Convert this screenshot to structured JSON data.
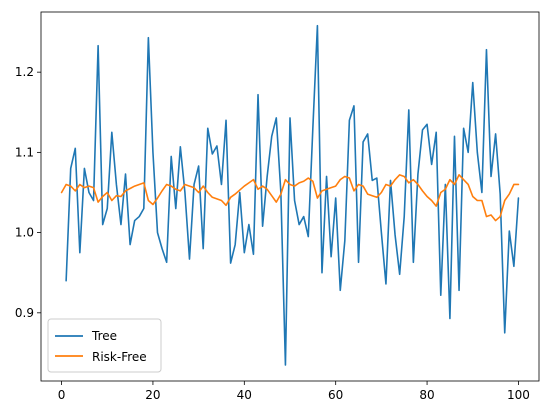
{
  "chart_data": {
    "type": "line",
    "title": "",
    "xlabel": "",
    "ylabel": "",
    "xlim": [
      -4.5,
      104.5
    ],
    "ylim": [
      0.815,
      1.275
    ],
    "x_ticks": [
      0,
      20,
      40,
      60,
      80,
      100
    ],
    "y_ticks": [
      0.9,
      1.0,
      1.1,
      1.2
    ],
    "x_tick_labels": [
      "0",
      "20",
      "40",
      "60",
      "80",
      "100"
    ],
    "y_tick_labels": [
      "0.9",
      "1.0",
      "1.1",
      "1.2"
    ],
    "grid": false,
    "legend_position": "lower-left",
    "series": [
      {
        "name": "Tree",
        "color": "#1f77b4",
        "x_start": 1,
        "values": [
          0.94,
          1.08,
          1.105,
          0.975,
          1.08,
          1.05,
          1.04,
          1.233,
          1.01,
          1.03,
          1.125,
          1.06,
          1.01,
          1.073,
          0.985,
          1.015,
          1.02,
          1.03,
          1.243,
          1.1,
          1.0,
          0.98,
          0.963,
          1.095,
          1.03,
          1.107,
          1.05,
          0.967,
          1.06,
          1.083,
          0.98,
          1.13,
          1.098,
          1.108,
          1.06,
          1.14,
          0.962,
          0.985,
          1.05,
          0.975,
          1.01,
          0.973,
          1.172,
          1.008,
          1.07,
          1.12,
          1.143,
          1.05,
          0.835,
          1.143,
          1.04,
          1.01,
          1.02,
          0.995,
          1.13,
          1.258,
          0.95,
          1.07,
          0.97,
          1.043,
          0.928,
          0.99,
          1.14,
          1.158,
          0.963,
          1.113,
          1.123,
          1.065,
          1.068,
          1.0,
          0.936,
          1.065,
          0.997,
          0.948,
          1.02,
          1.153,
          0.963,
          1.073,
          1.128,
          1.135,
          1.085,
          1.125,
          0.922,
          1.06,
          0.893,
          1.12,
          0.928,
          1.13,
          1.1,
          1.187,
          1.1,
          1.05,
          1.228,
          1.07,
          1.123,
          1.048,
          0.875,
          1.002,
          0.958,
          1.043
        ]
      },
      {
        "name": "Risk-Free",
        "color": "#ff7f0e",
        "x_start": 0,
        "values": [
          1.05,
          1.06,
          1.058,
          1.052,
          1.06,
          1.056,
          1.058,
          1.056,
          1.038,
          1.045,
          1.05,
          1.04,
          1.046,
          1.045,
          1.052,
          1.055,
          1.058,
          1.06,
          1.062,
          1.04,
          1.035,
          1.043,
          1.052,
          1.06,
          1.058,
          1.054,
          1.052,
          1.06,
          1.058,
          1.056,
          1.05,
          1.058,
          1.05,
          1.044,
          1.042,
          1.04,
          1.034,
          1.044,
          1.048,
          1.053,
          1.058,
          1.062,
          1.066,
          1.054,
          1.058,
          1.054,
          1.046,
          1.038,
          1.048,
          1.066,
          1.06,
          1.058,
          1.062,
          1.064,
          1.068,
          1.064,
          1.043,
          1.052,
          1.054,
          1.056,
          1.058,
          1.066,
          1.07,
          1.068,
          1.052,
          1.06,
          1.058,
          1.048,
          1.046,
          1.044,
          1.05,
          1.06,
          1.058,
          1.066,
          1.072,
          1.07,
          1.062,
          1.066,
          1.06,
          1.052,
          1.045,
          1.04,
          1.033,
          1.05,
          1.054,
          1.066,
          1.06,
          1.072,
          1.066,
          1.06,
          1.045,
          1.04,
          1.04,
          1.02,
          1.022,
          1.015,
          1.02,
          1.04,
          1.048,
          1.06,
          1.06
        ]
      }
    ]
  }
}
